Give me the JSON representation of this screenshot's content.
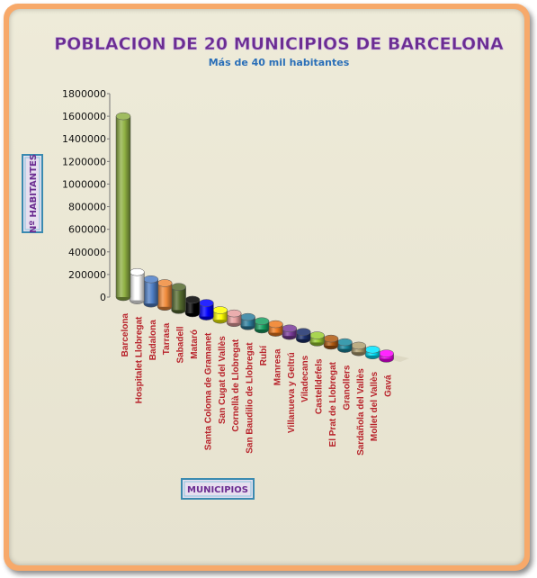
{
  "chart_data": {
    "type": "bar",
    "title": "POBLACION DE 20 MUNICIPIOS DE BARCELONA",
    "subtitle": "Más de 40 mil habitantes",
    "xlabel": "MUNICIPIOS",
    "ylabel": "Nº HABITANTES",
    "ylim": [
      0,
      1800000
    ],
    "yticks": [
      "0",
      "200000",
      "400000",
      "600000",
      "800000",
      "1000000",
      "1200000",
      "1400000",
      "1600000",
      "1800000"
    ],
    "grid": false,
    "categories": [
      "Barcelona",
      "Hospitalet Llobregat",
      "Badalona",
      "Tarrasa",
      "Sabadell",
      "Mataró",
      "Santa Coloma de Gramanet",
      "San Cugat del Vallès",
      "Cornellà de Llobregat",
      "San Baudilio de Llobregat",
      "Rubí",
      "Manresa",
      "Villanueva y Geltrú",
      "Viladecans",
      "Castelldefels",
      "El Prat de Llobregat",
      "Granollers",
      "Sardañola del Vallès",
      "Mollet del Vallès",
      "Gavá"
    ],
    "values": [
      1600000,
      250000,
      215000,
      210000,
      205000,
      120000,
      120000,
      85000,
      85000,
      82000,
      74000,
      76000,
      67000,
      65000,
      63000,
      63000,
      60000,
      58000,
      52000,
      46000
    ],
    "colors": [
      "#8fb043",
      "#ffffff",
      "#4f7fc6",
      "#f08a3a",
      "#556b2f",
      "#000000",
      "#0000ff",
      "#ffff00",
      "#e8a0a0",
      "#2e7f9e",
      "#18a060",
      "#f07b20",
      "#7a3a9a",
      "#1b2f6b",
      "#9acd32",
      "#b05a10",
      "#1a8aa0",
      "#b0a070",
      "#00e5ff",
      "#ff00ff"
    ]
  }
}
